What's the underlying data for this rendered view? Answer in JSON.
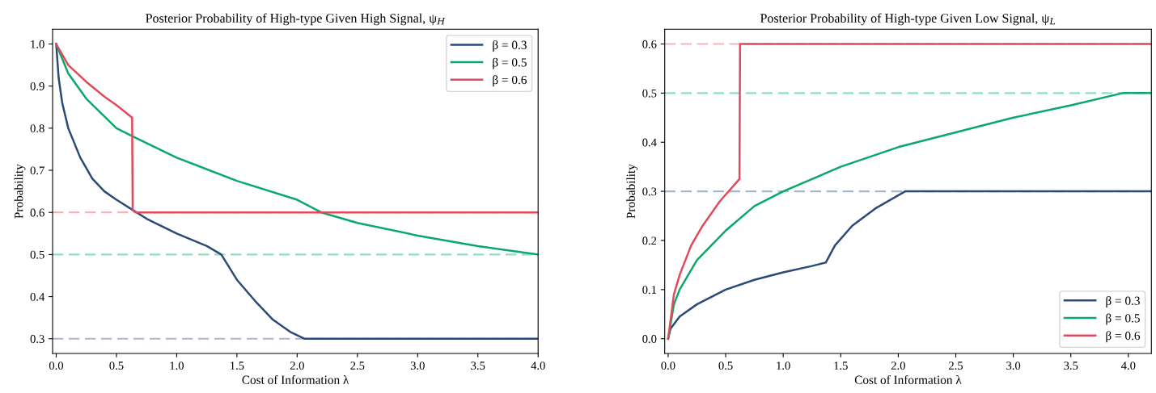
{
  "chart_data": [
    {
      "type": "line",
      "title": "Posterior Probability of High-type Given High Signal, ψ$_{H}$",
      "xlabel": "Cost of Information λ",
      "ylabel": "Probability",
      "xlim": [
        -0.03,
        4.0
      ],
      "ylim": [
        0.265,
        1.035
      ],
      "xticks": [
        {
          "value": 0,
          "label": "0.0"
        },
        0.5,
        {
          "value": 1,
          "label": "1.0"
        },
        1.5,
        {
          "value": 2,
          "label": "2.0"
        },
        2.5,
        {
          "value": 3,
          "label": "3.0"
        },
        3.5,
        {
          "value": 4,
          "label": "4.0"
        }
      ],
      "yticks": [
        0.3,
        0.4,
        0.5,
        0.6,
        0.7,
        0.8,
        0.9,
        {
          "value": 1,
          "label": "1.0"
        }
      ],
      "grid": false,
      "legend": "top right",
      "line_style": "solid",
      "marker": "none",
      "ref_lines": [
        {
          "axis": "y",
          "value": 0.6,
          "color": "#f4b4b9",
          "line_style": "dashed"
        },
        {
          "axis": "y",
          "value": 0.5,
          "color": "#92dec3",
          "line_style": "dashed"
        },
        {
          "axis": "y",
          "value": 0.3,
          "color": "#a9b7cc",
          "line_style": "dashed"
        }
      ],
      "series": [
        {
          "name": "β = 0.3",
          "color": "#2b4a78",
          "x": [
            0,
            0.02,
            0.05,
            0.1,
            0.2,
            0.3,
            0.4,
            0.5,
            0.64,
            0.75,
            1.0,
            1.25,
            1.37,
            1.5,
            1.65,
            1.8,
            1.95,
            2.06,
            4.0
          ],
          "values": [
            1.0,
            0.92,
            0.86,
            0.8,
            0.73,
            0.68,
            0.65,
            0.63,
            0.605,
            0.585,
            0.55,
            0.52,
            0.5,
            0.44,
            0.39,
            0.345,
            0.315,
            0.3,
            0.3
          ]
        },
        {
          "name": "β = 0.5",
          "color": "#0aa86a",
          "x": [
            0,
            0.1,
            0.25,
            0.5,
            0.64,
            1.0,
            1.5,
            2.0,
            2.2,
            2.5,
            3.0,
            3.5,
            4.0
          ],
          "values": [
            1.0,
            0.93,
            0.87,
            0.8,
            0.78,
            0.73,
            0.675,
            0.63,
            0.6,
            0.575,
            0.545,
            0.52,
            0.5
          ]
        },
        {
          "name": "β = 0.6",
          "color": "#e04a5a",
          "x": [
            0,
            0.1,
            0.25,
            0.4,
            0.5,
            0.63,
            0.635,
            0.66,
            4.0
          ],
          "values": [
            1.0,
            0.95,
            0.91,
            0.875,
            0.855,
            0.825,
            0.605,
            0.6,
            0.6
          ]
        }
      ]
    },
    {
      "type": "line",
      "title": "Posterior Probability of High-type Given Low Signal, ψ$_{L}$",
      "xlabel": "Cost of Information λ",
      "ylabel": "Probability",
      "xlim": [
        -0.03,
        4.2
      ],
      "ylim": [
        -0.03,
        0.63
      ],
      "xticks": [
        {
          "value": 0,
          "label": "0.0"
        },
        0.5,
        {
          "value": 1,
          "label": "1.0"
        },
        1.5,
        {
          "value": 2,
          "label": "2.0"
        },
        2.5,
        {
          "value": 3,
          "label": "3.0"
        },
        3.5,
        {
          "value": 4,
          "label": "4.0"
        }
      ],
      "yticks": [
        {
          "value": 0,
          "label": "0.0"
        },
        0.1,
        0.2,
        0.3,
        0.4,
        0.5,
        0.6
      ],
      "grid": false,
      "legend": "lower right",
      "line_style": "solid",
      "marker": "none",
      "ref_lines": [
        {
          "axis": "y",
          "value": 0.6,
          "color": "#f4b4b9",
          "line_style": "dashed"
        },
        {
          "axis": "y",
          "value": 0.5,
          "color": "#92dec3",
          "line_style": "dashed"
        },
        {
          "axis": "y",
          "value": 0.3,
          "color": "#a9b7cc",
          "line_style": "dashed"
        }
      ],
      "series": [
        {
          "name": "β = 0.3",
          "color": "#2b4a78",
          "x": [
            0,
            0.02,
            0.1,
            0.25,
            0.5,
            0.75,
            1.0,
            1.25,
            1.37,
            1.45,
            1.6,
            1.8,
            2.06,
            4.2
          ],
          "values": [
            0,
            0.02,
            0.045,
            0.07,
            0.1,
            0.12,
            0.135,
            0.148,
            0.155,
            0.19,
            0.23,
            0.265,
            0.3,
            0.3
          ]
        },
        {
          "name": "β = 0.5",
          "color": "#0aa86a",
          "x": [
            0,
            0.05,
            0.1,
            0.25,
            0.5,
            0.75,
            1.0,
            1.5,
            2.0,
            2.5,
            3.0,
            3.5,
            3.95,
            4.2
          ],
          "values": [
            0,
            0.07,
            0.1,
            0.16,
            0.22,
            0.27,
            0.3,
            0.35,
            0.39,
            0.42,
            0.45,
            0.475,
            0.5,
            0.5
          ]
        },
        {
          "name": "β = 0.6",
          "color": "#e04a5a",
          "x": [
            0,
            0.05,
            0.1,
            0.2,
            0.3,
            0.45,
            0.62,
            0.625,
            4.2
          ],
          "values": [
            0,
            0.09,
            0.13,
            0.19,
            0.23,
            0.28,
            0.325,
            0.6,
            0.6
          ]
        }
      ]
    }
  ]
}
